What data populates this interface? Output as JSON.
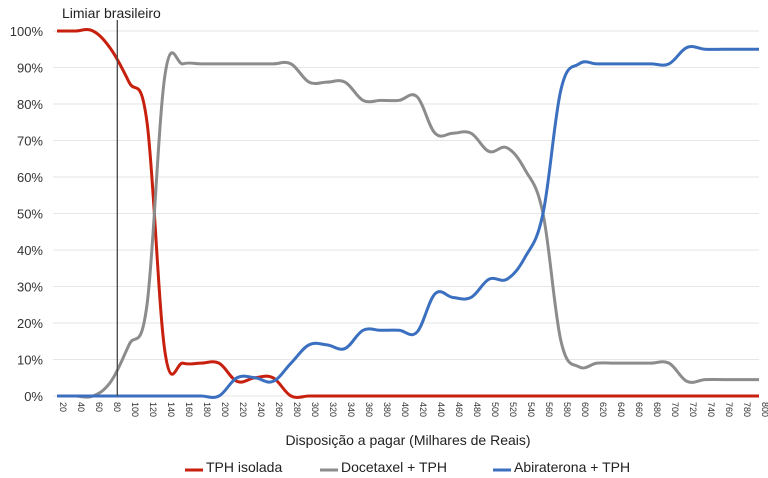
{
  "chart_data": {
    "type": "line",
    "title": "",
    "xlabel": "Disposição a pagar (Milhares de Reais)",
    "ylabel": "",
    "xlim": [
      20,
      800
    ],
    "ylim": [
      0,
      100
    ],
    "grid": true,
    "legend_position": "bottom",
    "x": [
      20,
      40,
      60,
      80,
      100,
      120,
      140,
      160,
      180,
      200,
      220,
      240,
      260,
      280,
      300,
      320,
      340,
      360,
      380,
      400,
      420,
      440,
      460,
      480,
      500,
      520,
      540,
      560,
      580,
      600,
      620,
      640,
      660,
      680,
      700,
      720,
      740,
      760,
      780,
      800
    ],
    "y_ticks": [
      "0%",
      "10%",
      "20%",
      "30%",
      "40%",
      "50%",
      "60%",
      "70%",
      "80%",
      "90%",
      "100%"
    ],
    "x_ticks": [
      "20",
      "40",
      "60",
      "80",
      "100",
      "120",
      "140",
      "160",
      "180",
      "200",
      "220",
      "240",
      "260",
      "280",
      "300",
      "320",
      "340",
      "360",
      "380",
      "400",
      "420",
      "440",
      "460",
      "480",
      "500",
      "520",
      "540",
      "560",
      "580",
      "600",
      "620",
      "640",
      "660",
      "680",
      "700",
      "720",
      "740",
      "760",
      "780",
      "800"
    ],
    "series": [
      {
        "name": "TPH isolada",
        "color": "#c8200e",
        "values": [
          100,
          100,
          100,
          95,
          86,
          75,
          12,
          9,
          9,
          9,
          4,
          5,
          5,
          0,
          0,
          0,
          0,
          0,
          0,
          0,
          0,
          0,
          0,
          0,
          0,
          0,
          0,
          0,
          0,
          0,
          0,
          0,
          0,
          0,
          0,
          0,
          0,
          0,
          0,
          0
        ]
      },
      {
        "name": "Docetaxel + TPH",
        "color": "#8c8c8c",
        "values": [
          0,
          0,
          0,
          4,
          14,
          25,
          88,
          91,
          91,
          91,
          91,
          91,
          91,
          91,
          86,
          86,
          86,
          81,
          81,
          81,
          82,
          72,
          72,
          72,
          67,
          68,
          62,
          50,
          15,
          8,
          9,
          9,
          9,
          9,
          9,
          4,
          4.5,
          4.5,
          4.5,
          4.5
        ]
      },
      {
        "name": "Abiraterona + TPH",
        "color": "#3b6fbf",
        "values": [
          0,
          0,
          0,
          0,
          0,
          0,
          0,
          0,
          0,
          0,
          5,
          5,
          4,
          9,
          14,
          14,
          13,
          18,
          18,
          18,
          17.5,
          28,
          27,
          27,
          32,
          32,
          38,
          50,
          84,
          91,
          91,
          91,
          91,
          91,
          91,
          95.5,
          95,
          95,
          95,
          95
        ]
      }
    ],
    "annotation": {
      "label": "Limiar brasileiro",
      "x_value": 87
    }
  }
}
